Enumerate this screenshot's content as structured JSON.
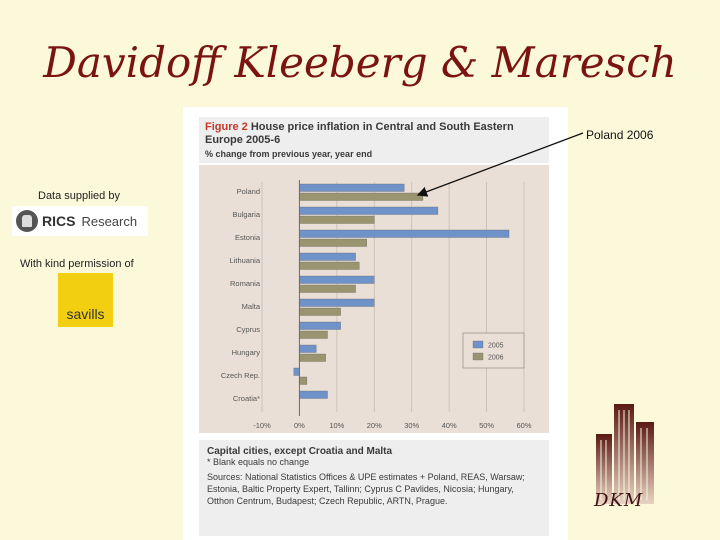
{
  "page": {
    "title": "Davidoff Kleeberg & Maresch",
    "data_supplied_by": "Data supplied by",
    "permission": "With kind permission of",
    "rics_word": "RICS",
    "rics_sub": "Research",
    "savills": "savills",
    "callout": "Poland  2006",
    "footer_logo": "DKM"
  },
  "figure": {
    "number": "Figure 2",
    "title_rest": "House price inflation in Central and South Eastern Europe 2005-6",
    "subtitle": "% change from previous year, year end",
    "notes": {
      "line1": "Capital cities, except Croatia and Malta",
      "line2": "* Blank equals no change",
      "sources": "Sources: National Statistics Offices & UPE estimates + Poland, REAS, Warsaw; Estonia, Baltic Property Expert, Tallinn; Cyprus C Pavlides, Nicosia; Hungary, Otthon Centrum, Budapest; Czech Republic, ARTN, Prague."
    }
  },
  "chart_data": {
    "type": "bar",
    "orientation": "horizontal",
    "categories": [
      "Poland",
      "Bulgaria",
      "Estonia",
      "Lithuania",
      "Romania",
      "Malta",
      "Cyprus",
      "Hungary",
      "Czech Rep.",
      "Croatia*"
    ],
    "series": [
      {
        "name": "2005",
        "color": "#6f93c8",
        "values": [
          28,
          37,
          56,
          15,
          20,
          20,
          11,
          4.5,
          -1.5,
          7.5
        ]
      },
      {
        "name": "2006",
        "color": "#9a9471",
        "values": [
          33,
          20,
          18,
          16,
          15,
          11,
          7.5,
          7,
          2,
          null
        ]
      }
    ],
    "xlim": [
      -10,
      60
    ],
    "xticks": [
      -10,
      0,
      10,
      20,
      30,
      40,
      50,
      60
    ],
    "xtick_labels": [
      "-10%",
      "0%",
      "10%",
      "20%",
      "30%",
      "40%",
      "50%",
      "60%"
    ],
    "legend_position": "lower-right",
    "grid": true
  }
}
